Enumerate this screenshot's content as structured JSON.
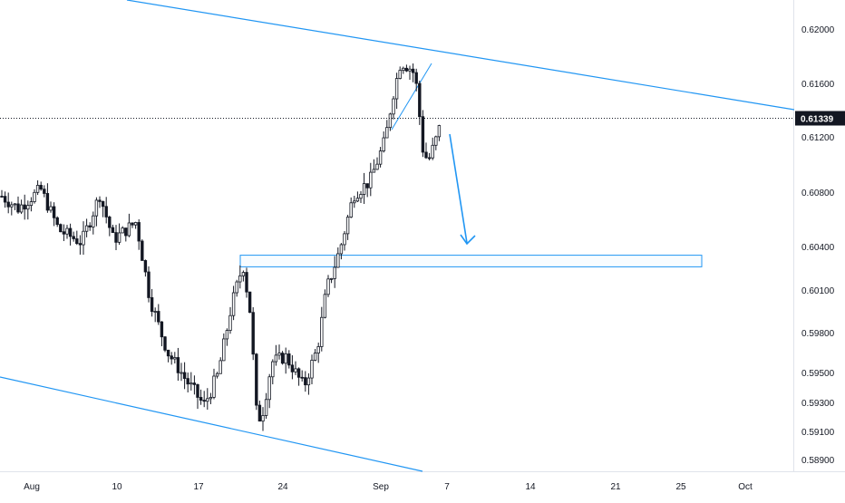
{
  "chart_data": {
    "type": "candlestick",
    "y_axis": {
      "ticks": [
        "0.62000",
        "0.61600",
        "0.61200",
        "0.60800",
        "0.60400",
        "0.60100",
        "0.59800",
        "0.59500",
        "0.59300",
        "0.59100",
        "0.58900"
      ],
      "ylim": [
        0.5885,
        0.6225
      ]
    },
    "x_axis": {
      "ticks": [
        "Aug",
        "10",
        "17",
        "24",
        "Sep",
        "7",
        "14",
        "21",
        "25",
        "Oct"
      ]
    },
    "current_price": "0.61339",
    "grid": false,
    "colors": {
      "candle": "#131722",
      "drawing": "#2196f3",
      "badge": "#131722",
      "axis_text": "#131722"
    },
    "annotations": [
      {
        "kind": "upper-channel-line"
      },
      {
        "kind": "lower-channel-line"
      },
      {
        "kind": "support-resistance-zone",
        "y_range": [
          0.6026,
          0.6034
        ]
      },
      {
        "kind": "local-trendline"
      },
      {
        "kind": "down-arrow"
      }
    ]
  }
}
